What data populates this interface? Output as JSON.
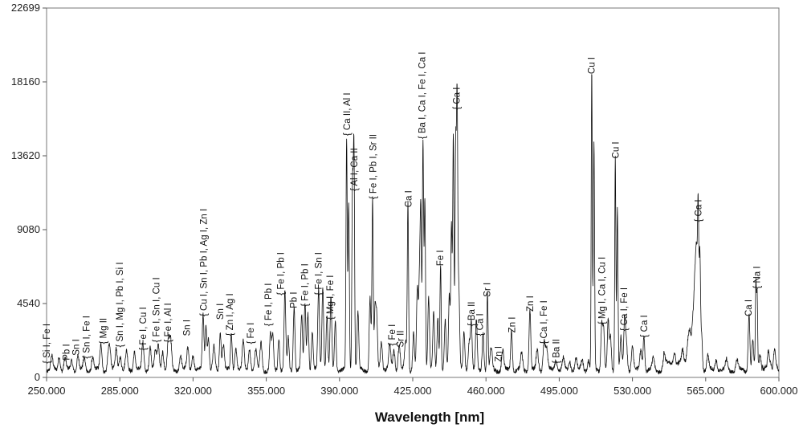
{
  "chart_data": {
    "type": "line",
    "title": "",
    "xlabel": "Wavelength [nm]",
    "ylabel": "",
    "xlim": [
      250,
      600
    ],
    "ylim": [
      0,
      22699
    ],
    "grid": false,
    "legend": "none",
    "xticks": [
      250,
      285,
      320,
      355,
      390,
      425,
      460,
      495,
      530,
      565,
      600
    ],
    "xtick_labels": [
      "250.000",
      "285.000",
      "320.000",
      "355.000",
      "390.000",
      "425.000",
      "460.000",
      "495.000",
      "530.000",
      "565.000",
      "600.000"
    ],
    "yticks": [
      0,
      4540,
      9080,
      13620,
      18160,
      22699
    ],
    "ytick_labels": [
      "0",
      "4540",
      "9080",
      "13620",
      "18160",
      "22699"
    ],
    "series": [
      {
        "name": "",
        "color": "#111111",
        "peaks": [
          [
            252.5,
            800,
            0.5
          ],
          [
            256.0,
            900,
            0.5
          ],
          [
            258.8,
            700,
            0.5
          ],
          [
            262.0,
            600,
            0.5
          ],
          [
            265.0,
            900,
            0.5
          ],
          [
            268.0,
            700,
            0.5
          ],
          [
            272.0,
            800,
            0.5
          ],
          [
            276.0,
            1600,
            0.5
          ],
          [
            279.6,
            1000,
            0.5
          ],
          [
            280.3,
            900,
            0.5
          ],
          [
            283.3,
            1400,
            0.5
          ],
          [
            285.2,
            900,
            0.5
          ],
          [
            288.2,
            1100,
            0.5
          ],
          [
            292.0,
            1200,
            0.5
          ],
          [
            296.0,
            1600,
            0.5
          ],
          [
            299.5,
            1500,
            0.5
          ],
          [
            302.0,
            1100,
            0.5
          ],
          [
            303.4,
            1500,
            0.5
          ],
          [
            305.5,
            1200,
            0.5
          ],
          [
            308.2,
            1800,
            0.5
          ],
          [
            309.3,
            1700,
            0.5
          ],
          [
            314.0,
            900,
            0.5
          ],
          [
            317.5,
            1400,
            0.5
          ],
          [
            320.0,
            1000,
            0.5
          ],
          [
            324.8,
            3500,
            0.4
          ],
          [
            326.2,
            2800,
            0.4
          ],
          [
            327.4,
            2000,
            0.4
          ],
          [
            330.0,
            1400,
            0.5
          ],
          [
            333.0,
            2400,
            0.4
          ],
          [
            334.5,
            1600,
            0.5
          ],
          [
            338.3,
            2200,
            0.4
          ],
          [
            340.5,
            1400,
            0.5
          ],
          [
            344.0,
            1700,
            0.5
          ],
          [
            347.0,
            1400,
            0.5
          ],
          [
            350.0,
            1200,
            0.5
          ],
          [
            352.5,
            1700,
            0.5
          ],
          [
            357.0,
            2300,
            0.4
          ],
          [
            358.1,
            2100,
            0.4
          ],
          [
            361.0,
            2000,
            0.4
          ],
          [
            363.9,
            4800,
            0.4
          ],
          [
            365.5,
            2000,
            0.4
          ],
          [
            368.3,
            4000,
            0.4
          ],
          [
            371.9,
            3300,
            0.4
          ],
          [
            373.5,
            4200,
            0.4
          ],
          [
            374.9,
            3600,
            0.4
          ],
          [
            377.0,
            2400,
            0.4
          ],
          [
            380.0,
            4900,
            0.4
          ],
          [
            382.0,
            5200,
            0.4
          ],
          [
            384.0,
            3300,
            0.4
          ],
          [
            385.9,
            4400,
            0.4
          ],
          [
            388.0,
            3000,
            0.4
          ],
          [
            393.4,
            14000,
            0.3
          ],
          [
            394.4,
            10200,
            0.3
          ],
          [
            396.2,
            11200,
            0.3
          ],
          [
            396.9,
            13800,
            0.3
          ],
          [
            398.8,
            3500,
            0.4
          ],
          [
            404.6,
            4500,
            0.4
          ],
          [
            405.8,
            10400,
            0.3
          ],
          [
            407.0,
            3600,
            0.4
          ],
          [
            407.8,
            3000,
            0.4
          ],
          [
            410.0,
            1800,
            0.5
          ],
          [
            414.0,
            1500,
            0.5
          ],
          [
            416.0,
            1300,
            0.5
          ],
          [
            418.5,
            1500,
            0.5
          ],
          [
            421.6,
            1700,
            0.5
          ],
          [
            422.7,
            10200,
            0.3
          ],
          [
            425.4,
            2400,
            0.4
          ],
          [
            427.2,
            5000,
            0.4
          ],
          [
            428.3,
            6000,
            0.4
          ],
          [
            428.9,
            8000,
            0.3
          ],
          [
            429.9,
            14000,
            0.3
          ],
          [
            430.8,
            10500,
            0.3
          ],
          [
            432.6,
            4500,
            0.4
          ],
          [
            435.0,
            3500,
            0.4
          ],
          [
            437.0,
            3200,
            0.4
          ],
          [
            438.3,
            6600,
            0.3
          ],
          [
            440.5,
            3000,
            0.4
          ],
          [
            442.5,
            4600,
            0.4
          ],
          [
            443.5,
            8800,
            0.3
          ],
          [
            444.4,
            14600,
            0.3
          ],
          [
            445.5,
            13500,
            0.3
          ],
          [
            446.2,
            16200,
            0.3
          ],
          [
            447.0,
            5000,
            0.4
          ],
          [
            449.5,
            2300,
            0.4
          ],
          [
            452.0,
            1800,
            0.5
          ],
          [
            453.0,
            2800,
            0.4
          ],
          [
            455.4,
            3000,
            0.4
          ],
          [
            458.6,
            2400,
            0.4
          ],
          [
            460.7,
            4700,
            0.3
          ],
          [
            462.5,
            1300,
            0.5
          ],
          [
            468.0,
            1200,
            0.5
          ],
          [
            472.2,
            2500,
            0.4
          ],
          [
            477.0,
            1000,
            0.5
          ],
          [
            481.0,
            3800,
            0.4
          ],
          [
            484.5,
            1200,
            0.5
          ],
          [
            487.8,
            1800,
            0.5
          ],
          [
            489.0,
            1300,
            0.5
          ],
          [
            493.4,
            700,
            0.5
          ],
          [
            497.0,
            700,
            0.5
          ],
          [
            500.0,
            600,
            0.5
          ],
          [
            503.0,
            700,
            0.5
          ],
          [
            506.0,
            600,
            0.5
          ],
          [
            509.0,
            600,
            0.5
          ],
          [
            510.55,
            18400,
            0.25
          ],
          [
            511.6,
            13800,
            0.3
          ],
          [
            515.3,
            2800,
            0.4
          ],
          [
            516.2,
            2600,
            0.4
          ],
          [
            518.4,
            3000,
            0.4
          ],
          [
            519.5,
            2000,
            0.4
          ],
          [
            521.8,
            13200,
            0.25
          ],
          [
            522.8,
            10000,
            0.3
          ],
          [
            524.5,
            2000,
            0.4
          ],
          [
            526.2,
            2600,
            0.4
          ],
          [
            527.0,
            1800,
            0.5
          ],
          [
            530.0,
            1500,
            0.5
          ],
          [
            534.0,
            1200,
            0.5
          ],
          [
            535.5,
            2200,
            0.4
          ],
          [
            540.0,
            700,
            0.5
          ],
          [
            545.0,
            700,
            0.5
          ],
          [
            550.0,
            800,
            0.5
          ],
          [
            554.0,
            800,
            0.5
          ],
          [
            556.5,
            1200,
            0.6
          ],
          [
            557.5,
            1800,
            0.6
          ],
          [
            558.9,
            2600,
            0.5
          ],
          [
            559.8,
            4200,
            0.4
          ],
          [
            560.6,
            6600,
            0.4
          ],
          [
            561.4,
            9200,
            0.3
          ],
          [
            562.2,
            7000,
            0.3
          ],
          [
            563.0,
            2400,
            0.4
          ],
          [
            566.0,
            900,
            0.5
          ],
          [
            570.0,
            700,
            0.5
          ],
          [
            575.0,
            600,
            0.5
          ],
          [
            580.0,
            600,
            0.5
          ],
          [
            585.7,
            3500,
            0.4
          ],
          [
            587.5,
            1800,
            0.4
          ],
          [
            588.99,
            5200,
            0.25
          ],
          [
            589.59,
            4600,
            0.25
          ],
          [
            591.0,
            1000,
            0.5
          ],
          [
            595.0,
            800,
            0.5
          ],
          [
            598.0,
            1200,
            0.5
          ]
        ]
      }
    ],
    "annotations": [
      {
        "text": "{ Si I, Fe I",
        "x": 251.5,
        "y": 700
      },
      {
        "text": "Pb I",
        "x": 261.0,
        "y": 900
      },
      {
        "text": "Sn I",
        "x": 265.5,
        "y": 1200
      },
      {
        "text": "{ Sn I, Fe I",
        "x": 270.5,
        "y": 1000
      },
      {
        "text": "{ Mg II",
        "x": 278.5,
        "y": 1900
      },
      {
        "text": "{ Sn I, Mg I, Pb I, Si I",
        "x": 286.5,
        "y": 1700
      },
      {
        "text": "{ Fe I, Cu I",
        "x": 297.5,
        "y": 1500
      },
      {
        "text": "{ Fe I, Sn I, Cu I",
        "x": 304.0,
        "y": 2000
      },
      {
        "text": "{ Fe I, Al I",
        "x": 309.5,
        "y": 2000
      },
      {
        "text": "Sn I",
        "x": 318.5,
        "y": 2400
      },
      {
        "text": "{ Cu I, Sn I, Pb I, Ag I, Zn I",
        "x": 326.5,
        "y": 3600
      },
      {
        "text": "Sn I",
        "x": 334.5,
        "y": 3400
      },
      {
        "text": "{ Zn I, Ag I",
        "x": 339.0,
        "y": 2400
      },
      {
        "text": "{ Fe I",
        "x": 349.0,
        "y": 1900
      },
      {
        "text": "{ Fe I, Pb I",
        "x": 357.5,
        "y": 3000
      },
      {
        "text": "{ Fe I, Pb I",
        "x": 363.5,
        "y": 4900
      },
      {
        "text": "Pb I",
        "x": 369.5,
        "y": 4100
      },
      {
        "text": "{ Fe I, Pb I",
        "x": 375.0,
        "y": 4200
      },
      {
        "text": "{ Fe I, Sn I",
        "x": 381.5,
        "y": 4900
      },
      {
        "text": "{ Mg I, Fe I",
        "x": 387.0,
        "y": 3400
      },
      {
        "text": "{ Ca II, Al I",
        "x": 395.0,
        "y": 14700
      },
      {
        "text": "{ Al I, Ca II",
        "x": 398.5,
        "y": 11300
      },
      {
        "text": "{ Fe I, Pb I, Sr II",
        "x": 407.5,
        "y": 10800
      },
      {
        "text": "{ Fe I",
        "x": 416.5,
        "y": 1800
      },
      {
        "text": "Sr II",
        "x": 420.5,
        "y": 1700
      },
      {
        "text": "Ca I",
        "x": 424.5,
        "y": 10300
      },
      {
        "text": "{ Ba I, Ca I, Fe I, Ca I",
        "x": 431.0,
        "y": 14500
      },
      {
        "text": "Fe I",
        "x": 439.5,
        "y": 6700
      },
      {
        "text": "{ Ca I",
        "x": 447.5,
        "y": 16300
      },
      {
        "text": "{ Ba II",
        "x": 454.5,
        "y": 3000
      },
      {
        "text": "{ Ca I",
        "x": 458.5,
        "y": 2400
      },
      {
        "text": "Sr I",
        "x": 462.0,
        "y": 4800
      },
      {
        "text": "Zn I",
        "x": 467.5,
        "y": 800
      },
      {
        "text": "Zn I",
        "x": 474.0,
        "y": 2600
      },
      {
        "text": "Zn I",
        "x": 482.5,
        "y": 3900
      },
      {
        "text": "{ Ca I, Fe I",
        "x": 489.0,
        "y": 1900
      },
      {
        "text": "{ Ba II",
        "x": 495.0,
        "y": 700
      },
      {
        "text": "Cu I",
        "x": 512.0,
        "y": 18500
      },
      {
        "text": "{ Mg I, Ca I, Cu I",
        "x": 517.0,
        "y": 3100
      },
      {
        "text": "Cu I",
        "x": 523.5,
        "y": 13300
      },
      {
        "text": "{ Ca I, Fe I",
        "x": 527.5,
        "y": 2700
      },
      {
        "text": "{ Ca I",
        "x": 537.0,
        "y": 2300
      },
      {
        "text": "{ Ca I",
        "x": 563.0,
        "y": 9400
      },
      {
        "text": "Ca I",
        "x": 587.0,
        "y": 3600
      },
      {
        "text": "{ Na I",
        "x": 591.0,
        "y": 5300
      }
    ]
  }
}
